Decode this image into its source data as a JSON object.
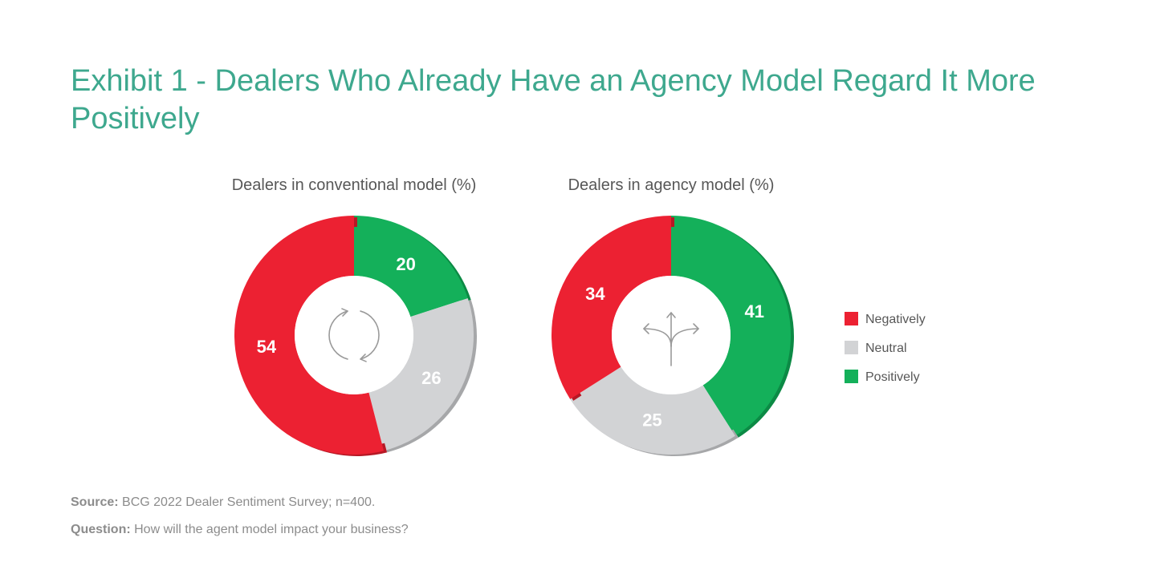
{
  "title": "Exhibit 1 - Dealers Who Already Have an Agency Model Regard It More Positively",
  "colors": {
    "negative": "#ec2132",
    "neutral": "#d2d3d5",
    "positive": "#14b05a",
    "negative_shadow": "#b71825",
    "neutral_shadow": "#a6a7a9",
    "positive_shadow": "#0c8a45",
    "title": "#3ea88e",
    "axis_text": "#575757",
    "footnote": "#8c8c8c"
  },
  "chart_data": [
    {
      "type": "pie",
      "title": "Dealers in conventional model (%)",
      "center_icon": "cycle-arrows-icon",
      "categories": [
        "Negatively",
        "Neutral",
        "Positively"
      ],
      "values": [
        54,
        26,
        20
      ]
    },
    {
      "type": "pie",
      "title": "Dealers in agency model (%)",
      "center_icon": "branching-arrows-icon",
      "categories": [
        "Negatively",
        "Neutral",
        "Positively"
      ],
      "values": [
        34,
        25,
        41
      ]
    }
  ],
  "legend": {
    "position": "right",
    "items": [
      "Negatively",
      "Neutral",
      "Positively"
    ]
  },
  "footnotes": {
    "source_label": "Source:",
    "source_text": "BCG 2022 Dealer Sentiment Survey; n=400.",
    "question_label": "Question:",
    "question_text": "How will the agent model impact your business?"
  }
}
